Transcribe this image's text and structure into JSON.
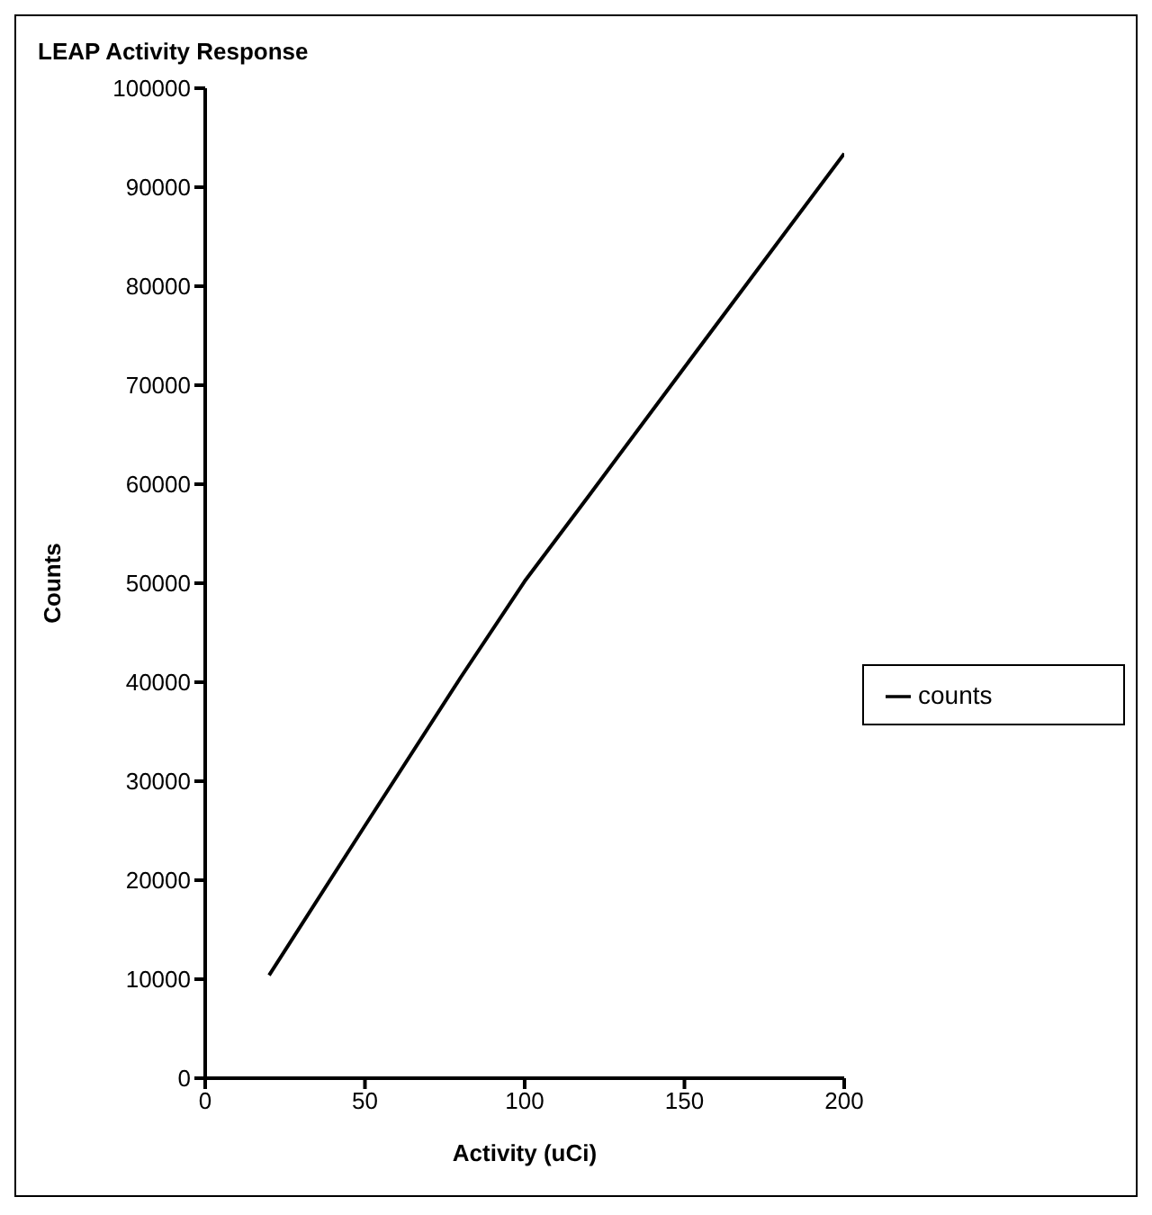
{
  "chart_data": {
    "type": "line",
    "title": "LEAP Activity Response",
    "xlabel": "Activity (uCi)",
    "ylabel": "Counts",
    "x": [
      20,
      50,
      80,
      100,
      120,
      150,
      200
    ],
    "series": [
      {
        "name": "counts",
        "color": "#000000",
        "values": [
          10400,
          25500,
          40500,
          50200,
          58800,
          71800,
          93400
        ]
      }
    ],
    "xlim": [
      0,
      200
    ],
    "xticks": [
      0,
      50,
      100,
      150,
      200
    ],
    "ylim": [
      0,
      100000
    ],
    "yticks": [
      0,
      10000,
      20000,
      30000,
      40000,
      50000,
      60000,
      70000,
      80000,
      90000,
      100000
    ],
    "grid": false,
    "legend": "right",
    "marker": "none",
    "line_style": "solid"
  }
}
